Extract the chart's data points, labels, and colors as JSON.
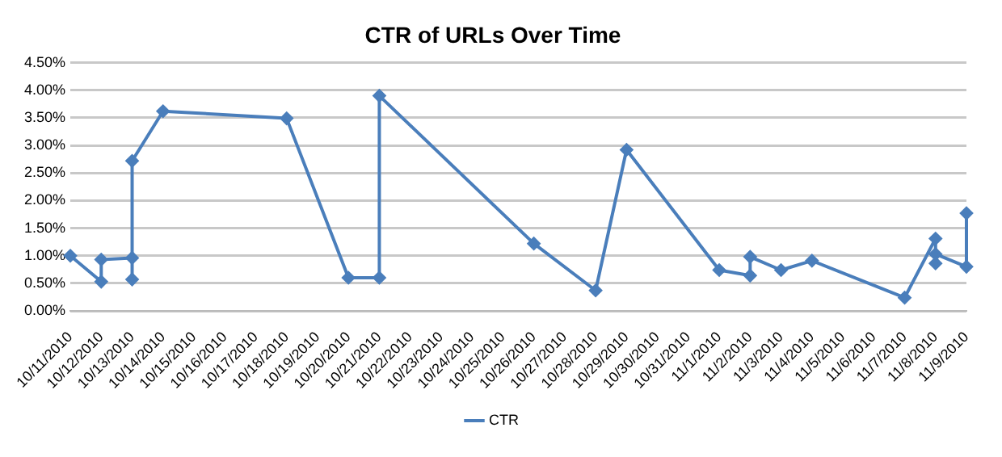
{
  "chart_data": {
    "type": "line",
    "title": "CTR of URLs Over Time",
    "x": [
      "2010-10-11",
      "2010-10-12",
      "2010-10-12",
      "2010-10-13",
      "2010-10-13",
      "2010-10-13",
      "2010-10-14",
      "2010-10-18",
      "2010-10-20",
      "2010-10-21",
      "2010-10-21",
      "2010-10-26",
      "2010-10-28",
      "2010-10-29",
      "2010-11-01",
      "2010-11-02",
      "2010-11-02",
      "2010-11-03",
      "2010-11-04",
      "2010-11-07",
      "2010-11-08",
      "2010-11-08",
      "2010-11-08",
      "2010-11-09",
      "2010-11-09"
    ],
    "series": [
      {
        "name": "CTR",
        "color": "#4a7ebb",
        "values": [
          1.0,
          0.53,
          0.93,
          0.96,
          0.57,
          2.72,
          3.62,
          3.49,
          0.6,
          0.6,
          3.9,
          1.22,
          0.37,
          2.92,
          0.74,
          0.64,
          0.98,
          0.74,
          0.91,
          0.24,
          1.31,
          0.86,
          1.03,
          0.8,
          1.77
        ]
      }
    ],
    "xlim": [
      "2010-10-11",
      "2010-11-09"
    ],
    "xticks": [
      {
        "value": "2010-10-11",
        "label": "10/11/2010"
      },
      {
        "value": "2010-10-12",
        "label": "10/12/2010"
      },
      {
        "value": "2010-10-13",
        "label": "10/13/2010"
      },
      {
        "value": "2010-10-14",
        "label": "10/14/2010"
      },
      {
        "value": "2010-10-15",
        "label": "10/15/2010"
      },
      {
        "value": "2010-10-16",
        "label": "10/16/2010"
      },
      {
        "value": "2010-10-17",
        "label": "10/17/2010"
      },
      {
        "value": "2010-10-18",
        "label": "10/18/2010"
      },
      {
        "value": "2010-10-19",
        "label": "10/19/2010"
      },
      {
        "value": "2010-10-20",
        "label": "10/20/2010"
      },
      {
        "value": "2010-10-21",
        "label": "10/21/2010"
      },
      {
        "value": "2010-10-22",
        "label": "10/22/2010"
      },
      {
        "value": "2010-10-23",
        "label": "10/23/2010"
      },
      {
        "value": "2010-10-24",
        "label": "10/24/2010"
      },
      {
        "value": "2010-10-25",
        "label": "10/25/2010"
      },
      {
        "value": "2010-10-26",
        "label": "10/26/2010"
      },
      {
        "value": "2010-10-27",
        "label": "10/27/2010"
      },
      {
        "value": "2010-10-28",
        "label": "10/28/2010"
      },
      {
        "value": "2010-10-29",
        "label": "10/29/2010"
      },
      {
        "value": "2010-10-30",
        "label": "10/30/2010"
      },
      {
        "value": "2010-10-31",
        "label": "10/31/2010"
      },
      {
        "value": "2010-11-01",
        "label": "11/1/2010"
      },
      {
        "value": "2010-11-02",
        "label": "11/2/2010"
      },
      {
        "value": "2010-11-03",
        "label": "11/3/2010"
      },
      {
        "value": "2010-11-04",
        "label": "11/4/2010"
      },
      {
        "value": "2010-11-05",
        "label": "11/5/2010"
      },
      {
        "value": "2010-11-06",
        "label": "11/6/2010"
      },
      {
        "value": "2010-11-07",
        "label": "11/7/2010"
      },
      {
        "value": "2010-11-08",
        "label": "11/8/2010"
      },
      {
        "value": "2010-11-09",
        "label": "11/9/2010"
      }
    ],
    "ylim": [
      0,
      4.5
    ],
    "yticks": [
      {
        "value": 0,
        "label": "0.00%"
      },
      {
        "value": 0.5,
        "label": "0.50%"
      },
      {
        "value": 1,
        "label": "1.00%"
      },
      {
        "value": 1.5,
        "label": "1.50%"
      },
      {
        "value": 2,
        "label": "2.00%"
      },
      {
        "value": 2.5,
        "label": "2.50%"
      },
      {
        "value": 3,
        "label": "3.00%"
      },
      {
        "value": 3.5,
        "label": "3.50%"
      },
      {
        "value": 4,
        "label": "4.00%"
      },
      {
        "value": 4.5,
        "label": "4.50%"
      }
    ],
    "grid": "y",
    "legend": "bottom",
    "marker": "diamond",
    "line_style": "solid"
  }
}
